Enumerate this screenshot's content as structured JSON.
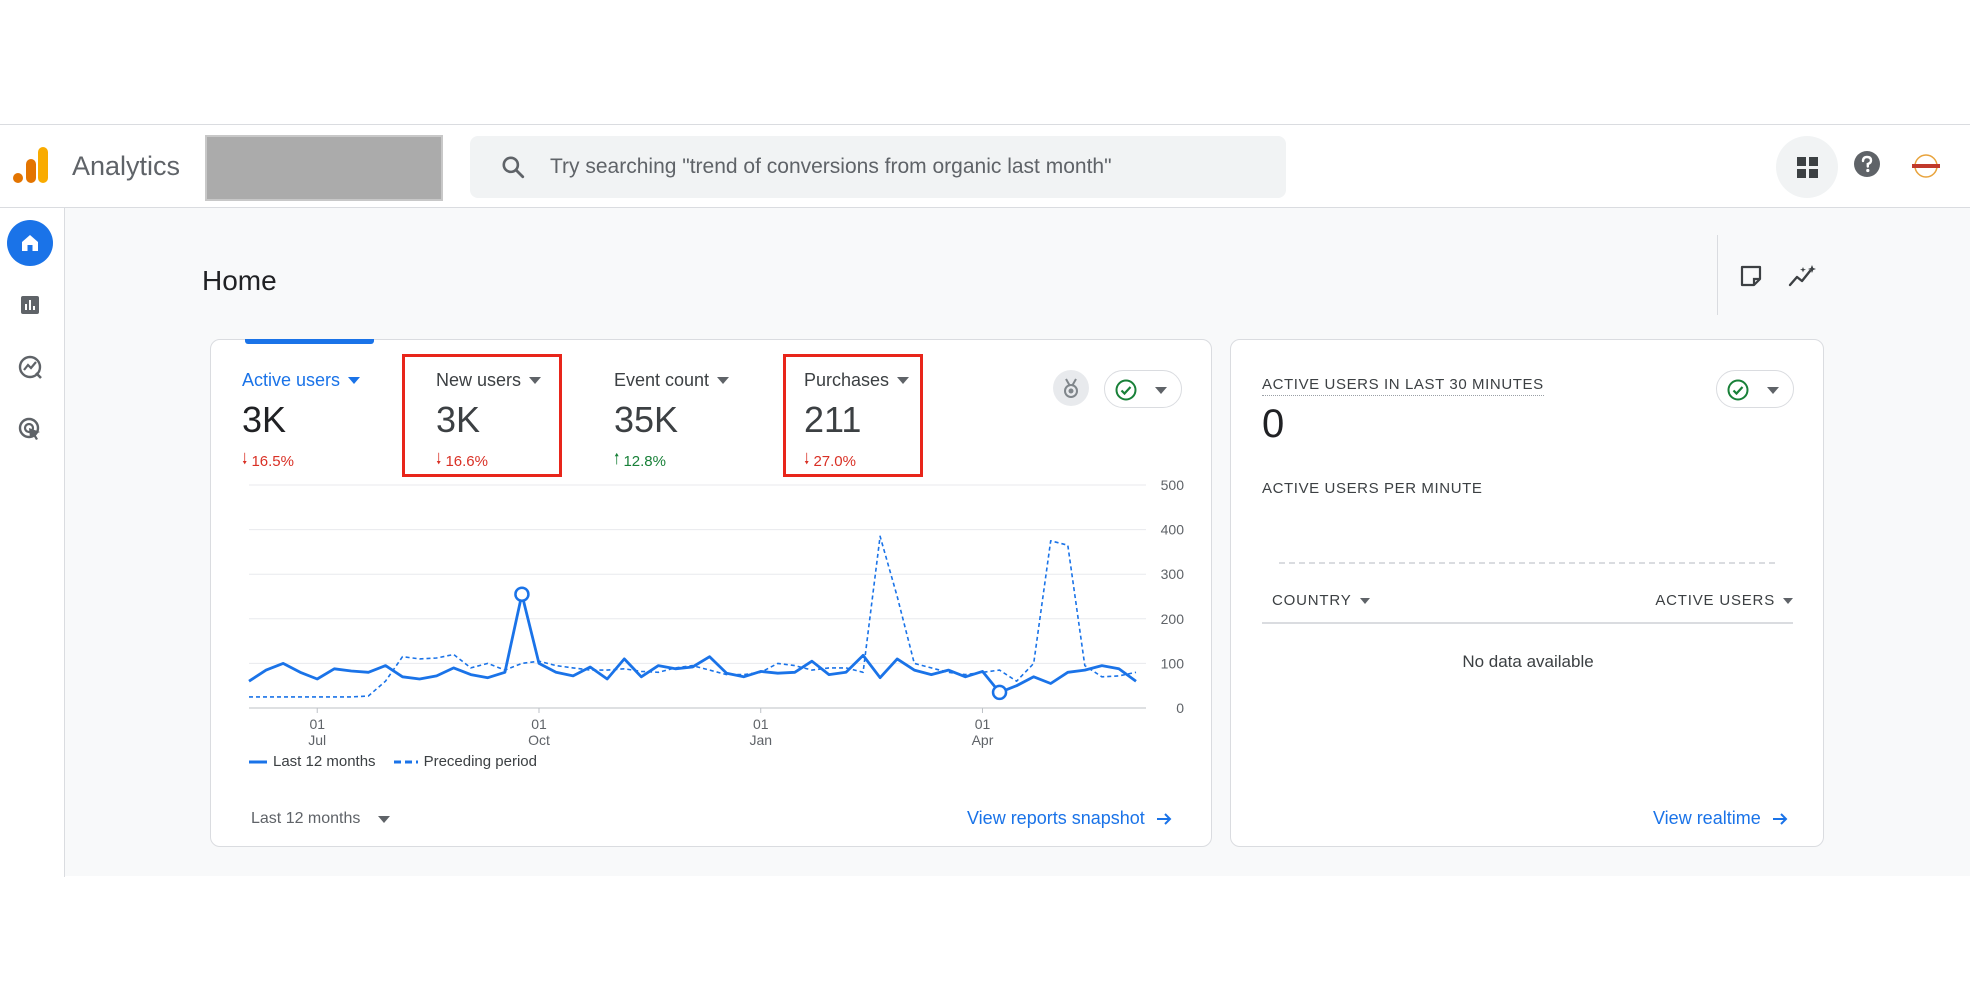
{
  "app": {
    "title": "Analytics",
    "search_placeholder": "Try searching \"trend of conversions from organic last month\""
  },
  "page": {
    "title": "Home"
  },
  "metrics": [
    {
      "label": "Active users",
      "value": "3K",
      "change": "16.5%",
      "direction": "down",
      "selected": true,
      "highlighted": false
    },
    {
      "label": "New users",
      "value": "3K",
      "change": "16.6%",
      "direction": "down",
      "selected": false,
      "highlighted": true
    },
    {
      "label": "Event count",
      "value": "35K",
      "change": "12.8%",
      "direction": "up",
      "selected": false,
      "highlighted": false
    },
    {
      "label": "Purchases",
      "value": "211",
      "change": "27.0%",
      "direction": "down",
      "selected": false,
      "highlighted": true
    }
  ],
  "legend": {
    "current": "Last 12 months",
    "previous": "Preceding period"
  },
  "date_range": "Last 12 months",
  "links": {
    "reports_snapshot": "View reports snapshot",
    "realtime": "View realtime"
  },
  "realtime": {
    "heading": "ACTIVE USERS IN LAST 30 MINUTES",
    "value": "0",
    "per_minute_label": "ACTIVE USERS PER MINUTE",
    "col_country": "COUNTRY",
    "col_active_users": "ACTIVE USERS",
    "empty_text": "No data available"
  },
  "colors": {
    "accent": "#1a73e8",
    "down": "#d93025",
    "up": "#188038",
    "highlight": "#e8251a"
  },
  "icons": [
    "search-icon",
    "apps-grid-icon",
    "help-icon",
    "home-icon",
    "reports-icon",
    "explore-icon",
    "advertising-icon",
    "note-icon",
    "insights-icon",
    "medal-icon",
    "check-circle-icon",
    "chevron-down-icon",
    "arrow-right-icon"
  ],
  "chart_data": {
    "type": "line",
    "ylim": [
      0,
      500
    ],
    "yticks": [
      0,
      100,
      200,
      300,
      400,
      500
    ],
    "xticks": [
      {
        "day": "01",
        "month": "Jul",
        "index": 4
      },
      {
        "day": "01",
        "month": "Oct",
        "index": 17
      },
      {
        "day": "01",
        "month": "Jan",
        "index": 30
      },
      {
        "day": "01",
        "month": "Apr",
        "index": 43
      }
    ],
    "series": [
      {
        "name": "Last 12 months",
        "style": "solid",
        "values": [
          60,
          85,
          100,
          80,
          65,
          88,
          83,
          80,
          95,
          70,
          65,
          72,
          90,
          75,
          68,
          80,
          255,
          100,
          80,
          72,
          92,
          65,
          110,
          70,
          95,
          88,
          92,
          115,
          78,
          70,
          82,
          78,
          80,
          105,
          75,
          80,
          118,
          68,
          110,
          85,
          75,
          85,
          70,
          82,
          35,
          50,
          70,
          55,
          80,
          85,
          95,
          88,
          60
        ],
        "markers": [
          16,
          44
        ]
      },
      {
        "name": "Preceding period",
        "style": "dashed",
        "values": [
          25,
          25,
          25,
          25,
          25,
          25,
          25,
          27,
          60,
          115,
          110,
          112,
          120,
          90,
          100,
          85,
          100,
          105,
          95,
          90,
          85,
          85,
          88,
          82,
          80,
          90,
          95,
          85,
          75,
          75,
          80,
          100,
          95,
          85,
          90,
          90,
          80,
          385,
          250,
          100,
          90,
          80,
          75,
          80,
          85,
          60,
          100,
          375,
          365,
          95,
          70,
          72,
          80
        ]
      }
    ]
  }
}
